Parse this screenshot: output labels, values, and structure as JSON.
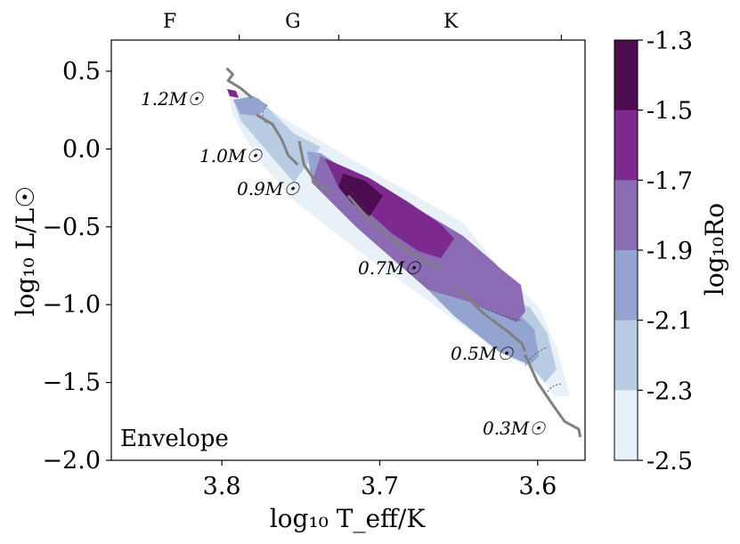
{
  "chart_data": {
    "type": "heatmap",
    "title": "",
    "xlabel": "log₁₀ T_eff/K",
    "ylabel": "log₁₀ L/L☉",
    "colorbar_label": "log₁₀Ro",
    "panel_label": "Envelope",
    "xlim": [
      3.87,
      3.57
    ],
    "ylim": [
      -2.0,
      0.7
    ],
    "x_ticks": [
      3.8,
      3.7,
      3.6
    ],
    "x_tick_labels": [
      "3.8",
      "3.7",
      "3.6"
    ],
    "y_ticks": [
      0.5,
      0.0,
      -0.5,
      -1.0,
      -1.5,
      -2.0
    ],
    "y_tick_labels": [
      "0.5",
      "0.0",
      "−0.5",
      "−1.0",
      "−1.5",
      "−2.0"
    ],
    "spectral_types": [
      {
        "label": "F",
        "x": 3.833
      },
      {
        "label": "G",
        "x": 3.755
      },
      {
        "label": "K",
        "x": 3.655
      }
    ],
    "spectral_boundaries": [
      3.789,
      3.726,
      3.585
    ],
    "colorbar": {
      "levels": [
        -1.3,
        -1.5,
        -1.7,
        -1.9,
        -2.1,
        -2.3,
        -2.5
      ],
      "tick_labels": [
        "-1.3",
        "-1.5",
        "-1.7",
        "-1.9",
        "-2.1",
        "-2.3",
        "-2.5"
      ],
      "band_colors": [
        "#4d0c4f",
        "#7c2a8e",
        "#8b6bb4",
        "#92a4cf",
        "#b8cde4",
        "#e8f1f8"
      ]
    },
    "tracks": [
      {
        "mass_label": "1.2M☉",
        "points": [
          [
            3.797,
            0.52
          ],
          [
            3.793,
            0.48
          ],
          [
            3.796,
            0.44
          ],
          [
            3.788,
            0.39
          ],
          [
            3.781,
            0.33
          ]
        ]
      },
      {
        "mass_label": "1.0M☉",
        "points": [
          [
            3.778,
            0.22
          ],
          [
            3.768,
            0.16
          ],
          [
            3.762,
            0.06
          ],
          [
            3.758,
            -0.04
          ],
          [
            3.752,
            -0.1
          ]
        ]
      },
      {
        "mass_label": "0.9M☉",
        "points": [
          [
            3.751,
            0.05
          ],
          [
            3.748,
            -0.1
          ],
          [
            3.74,
            -0.22
          ],
          [
            3.73,
            -0.28
          ]
        ]
      },
      {
        "mass_label": "0.7M☉",
        "points": [
          [
            3.72,
            -0.3
          ],
          [
            3.707,
            -0.45
          ],
          [
            3.69,
            -0.6
          ],
          [
            3.675,
            -0.7
          ],
          [
            3.66,
            -0.78
          ]
        ]
      },
      {
        "mass_label": "0.5M☉",
        "points": [
          [
            3.652,
            -0.88
          ],
          [
            3.635,
            -1.05
          ],
          [
            3.618,
            -1.18
          ],
          [
            3.61,
            -1.25
          ],
          [
            3.608,
            -1.3
          ]
        ]
      },
      {
        "mass_label": "0.3M☉",
        "points": [
          [
            3.608,
            -1.32
          ],
          [
            3.6,
            -1.5
          ],
          [
            3.59,
            -1.65
          ],
          [
            3.583,
            -1.75
          ],
          [
            3.574,
            -1.8
          ],
          [
            3.573,
            -1.85
          ]
        ]
      }
    ],
    "grid": false,
    "colorbar_placement": "right"
  }
}
